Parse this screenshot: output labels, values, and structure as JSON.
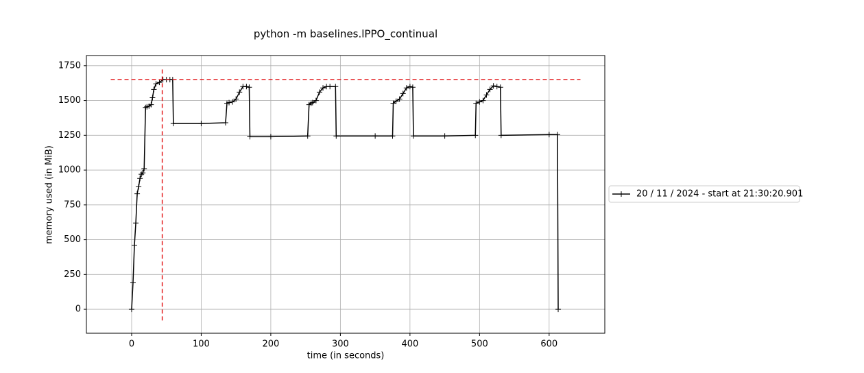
{
  "chart_data": {
    "type": "line",
    "title": "python -m baselines.lPPO_continual",
    "x_label": "time (in seconds)",
    "y_label": "memory used (in MiB)",
    "x": [
      0,
      2,
      4,
      6,
      8,
      10,
      12,
      14,
      16,
      18,
      20,
      22,
      25,
      28,
      30,
      32,
      35,
      40,
      45,
      50,
      55,
      59,
      60,
      100,
      135,
      137,
      140,
      145,
      150,
      155,
      160,
      165,
      169,
      170,
      200,
      253,
      255,
      258,
      260,
      265,
      270,
      275,
      280,
      285,
      293,
      294,
      350,
      375,
      376,
      380,
      385,
      390,
      395,
      400,
      404,
      405,
      450,
      494,
      495,
      500,
      505,
      510,
      515,
      520,
      525,
      530,
      531,
      600,
      612,
      613
    ],
    "series": [
      {
        "name": "20 / 11 / 2024 - start at 21:30:20.901",
        "color": "#000000",
        "values": [
          0,
          190,
          460,
          620,
          830,
          880,
          940,
          970,
          980,
          1010,
          1450,
          1455,
          1460,
          1470,
          1520,
          1580,
          1620,
          1630,
          1650,
          1650,
          1650,
          1650,
          1335,
          1335,
          1340,
          1480,
          1485,
          1490,
          1510,
          1560,
          1600,
          1600,
          1595,
          1240,
          1240,
          1245,
          1470,
          1480,
          1485,
          1500,
          1560,
          1590,
          1600,
          1600,
          1600,
          1245,
          1245,
          1245,
          1480,
          1495,
          1510,
          1550,
          1590,
          1600,
          1595,
          1245,
          1245,
          1250,
          1480,
          1490,
          1500,
          1540,
          1580,
          1605,
          1600,
          1595,
          1250,
          1255,
          1255,
          0
        ]
      }
    ],
    "hline": {
      "y": 1650,
      "x": [
        -30,
        645
      ],
      "color": "#e31a1c"
    },
    "vline": {
      "x": 44,
      "y": [
        -80,
        1740
      ],
      "color": "#e31a1c"
    },
    "xlim": [
      -65,
      680
    ],
    "ylim": [
      -172,
      1823
    ],
    "xticks": [
      0,
      100,
      200,
      300,
      400,
      500,
      600
    ],
    "yticks": [
      0,
      250,
      500,
      750,
      1000,
      1250,
      1500,
      1750
    ],
    "grid": true,
    "legend": "right"
  }
}
